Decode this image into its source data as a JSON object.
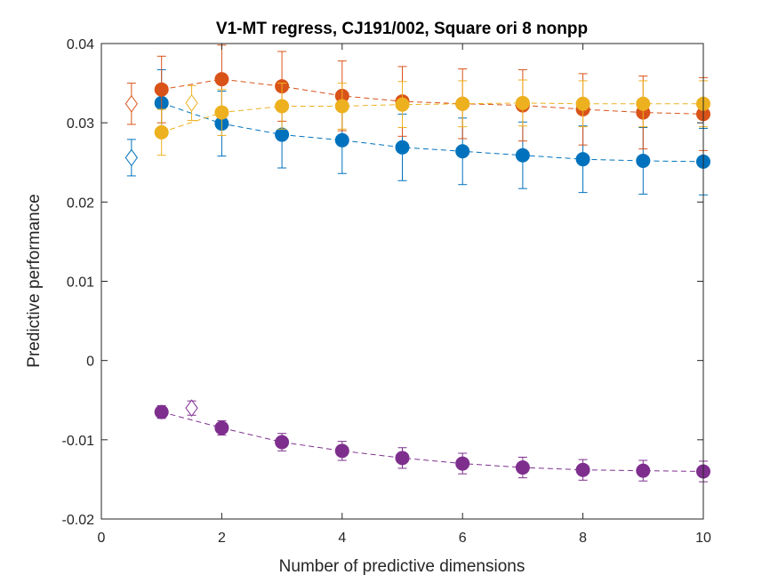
{
  "chart_data": {
    "type": "scatter",
    "title": "V1-MT regress, CJ191/002, Square ori 8 nonpp",
    "xlabel": "Number of predictive dimensions",
    "ylabel": "Predictive performance",
    "xlim": [
      0,
      10
    ],
    "ylim": [
      -0.02,
      0.04
    ],
    "xticks": [
      0,
      2,
      4,
      6,
      8,
      10
    ],
    "xtick_labels": [
      "0",
      "2",
      "4",
      "6",
      "8",
      "10"
    ],
    "yticks": [
      -0.02,
      -0.01,
      0,
      0.01,
      0.02,
      0.03,
      0.04
    ],
    "ytick_labels": [
      "-0.02",
      "-0.01",
      "0",
      "0.01",
      "0.02",
      "0.03",
      "0.04"
    ],
    "grid": false,
    "series": [
      {
        "color": "#0072BD",
        "x": [
          1,
          2,
          3,
          4,
          5,
          6,
          7,
          8,
          9,
          10
        ],
        "y": [
          0.0325,
          0.0299,
          0.0285,
          0.0278,
          0.0269,
          0.0264,
          0.0259,
          0.0254,
          0.0252,
          0.0251
        ],
        "err": [
          0.0042,
          0.0041,
          0.0042,
          0.0042,
          0.0042,
          0.0042,
          0.0042,
          0.0042,
          0.0042,
          0.0042
        ],
        "diamond": {
          "x": 0.5,
          "y": 0.0256,
          "err": 0.0023
        }
      },
      {
        "color": "#D95319",
        "x": [
          1,
          2,
          3,
          4,
          5,
          6,
          7,
          8,
          9,
          10
        ],
        "y": [
          0.0342,
          0.0355,
          0.0346,
          0.0334,
          0.0327,
          0.0324,
          0.0322,
          0.0317,
          0.0313,
          0.0311
        ],
        "err": [
          0.0042,
          0.0043,
          0.0044,
          0.0044,
          0.0044,
          0.0044,
          0.0045,
          0.0045,
          0.0046,
          0.0046
        ],
        "diamond": {
          "x": 0.5,
          "y": 0.0324,
          "err": 0.0026
        }
      },
      {
        "color": "#EDB120",
        "x": [
          1,
          2,
          3,
          4,
          5,
          6,
          7,
          8,
          9,
          10
        ],
        "y": [
          0.0288,
          0.0313,
          0.0321,
          0.0321,
          0.0323,
          0.0324,
          0.0325,
          0.0324,
          0.0324,
          0.0324
        ],
        "err": [
          0.0029,
          0.0029,
          0.0029,
          0.0029,
          0.0029,
          0.0029,
          0.0029,
          0.0029,
          0.0029,
          0.0029
        ],
        "diamond": {
          "x": 1.5,
          "y": 0.0325,
          "err": 0.0022
        }
      },
      {
        "color": "#7E2F8E",
        "x": [
          1,
          2,
          3,
          4,
          5,
          6,
          7,
          8,
          9,
          10
        ],
        "y": [
          -0.0065,
          -0.0085,
          -0.0103,
          -0.0114,
          -0.0123,
          -0.013,
          -0.0135,
          -0.0138,
          -0.0139,
          -0.014
        ],
        "err": [
          0.0008,
          0.0009,
          0.0011,
          0.0012,
          0.0013,
          0.0013,
          0.0013,
          0.0013,
          0.0013,
          0.0013
        ],
        "diamond": {
          "x": 1.5,
          "y": -0.006,
          "err": 0.0009
        }
      }
    ]
  }
}
